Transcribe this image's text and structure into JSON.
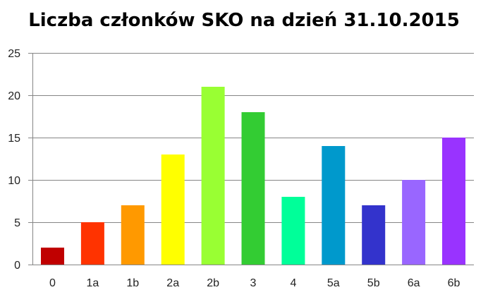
{
  "chart_data": {
    "type": "bar",
    "title": "Liczba członków SKO na dzień 31.10.2015",
    "xlabel": "",
    "ylabel": "",
    "ylim": [
      0,
      25
    ],
    "yticks": [
      0,
      5,
      10,
      15,
      20,
      25
    ],
    "grid": true,
    "legend": "none",
    "categories": [
      "0",
      "1a",
      "1b",
      "2a",
      "2b",
      "3",
      "4",
      "5a",
      "5b",
      "6a",
      "6b"
    ],
    "values": [
      2,
      5,
      7,
      13,
      21,
      18,
      8,
      14,
      7,
      10,
      15
    ],
    "colors": [
      "#c00000",
      "#ff3300",
      "#ff9900",
      "#ffff00",
      "#99ff33",
      "#33cc33",
      "#00ff99",
      "#0099cc",
      "#3333cc",
      "#9966ff",
      "#9933ff"
    ]
  }
}
